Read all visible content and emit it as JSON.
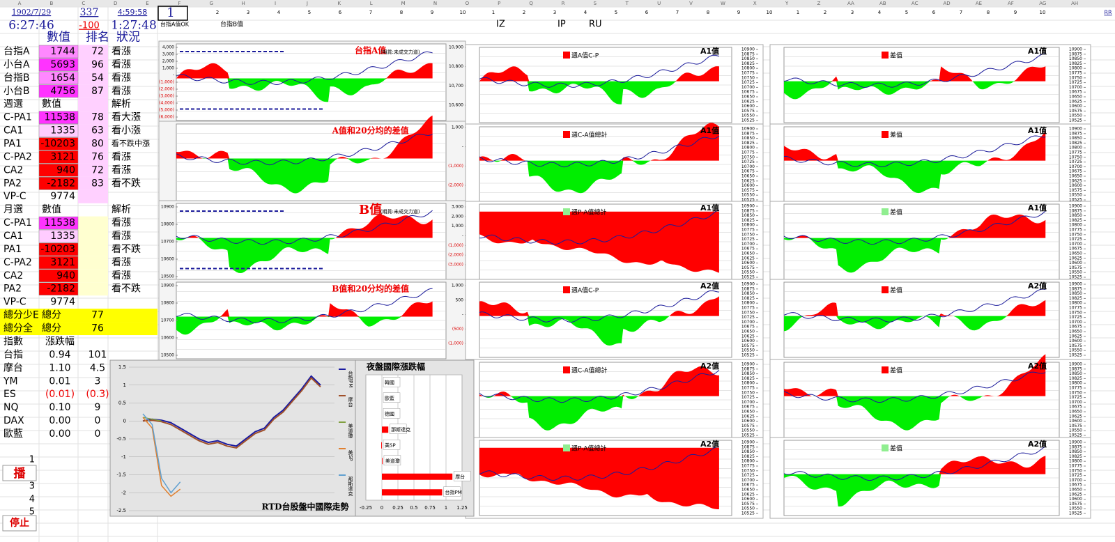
{
  "header": {
    "columns": [
      "A",
      "B",
      "C",
      "D",
      "E",
      "F",
      "G",
      "H",
      "I",
      "J",
      "K",
      "L",
      "M",
      "N",
      "O",
      "P",
      "Q",
      "R",
      "S",
      "T",
      "U",
      "V",
      "W",
      "X",
      "Y",
      "Z",
      "AA",
      "AB",
      "AC",
      "AD",
      "AE",
      "AF",
      "AG",
      "AH"
    ],
    "date": "1902/7/29",
    "count": "337",
    "time1": "4:59:58",
    "cell": "1",
    "clock": "6:27:46",
    "diff": "-100",
    "time2": "1:27:48",
    "corner": "RR",
    "group1": [
      "2",
      "3",
      "4",
      "5",
      "6",
      "7",
      "8",
      "9",
      "10"
    ],
    "group2": [
      "1",
      "2",
      "3",
      "4",
      "5",
      "6",
      "7",
      "8",
      "9",
      "10"
    ],
    "group3": [
      "1",
      "2",
      "3",
      "4",
      "5",
      "6",
      "7",
      "8",
      "9",
      "10"
    ],
    "tabs": [
      "台指A值OK",
      "台指B值"
    ],
    "codes": [
      "IZ",
      "IP",
      "RU"
    ]
  },
  "table": {
    "headers": [
      "數值",
      "排名",
      "狀況"
    ],
    "rows": [
      {
        "label": "台指A",
        "value": "1744",
        "rank": "72",
        "status": "看漲"
      },
      {
        "label": "小台A",
        "value": "5693",
        "rank": "96",
        "status": "看漲"
      },
      {
        "label": "台指B",
        "value": "1654",
        "rank": "54",
        "status": "看漲"
      },
      {
        "label": "小台B",
        "value": "4756",
        "rank": "87",
        "status": "看漲"
      },
      {
        "label": "週選",
        "value": "數值",
        "status": "解析"
      },
      {
        "label": "C-PA1",
        "value": "11538",
        "rank": "78",
        "status": "看大漲"
      },
      {
        "label": "CA1",
        "value": "1335",
        "rank": "63",
        "status": "看小漲"
      },
      {
        "label": "PA1",
        "value": "-10203",
        "rank": "80",
        "status": "看不跌中漲"
      },
      {
        "label": "C-PA2",
        "value": "3121",
        "rank": "76",
        "status": "看漲"
      },
      {
        "label": "CA2",
        "value": "940",
        "rank": "72",
        "status": "看漲"
      },
      {
        "label": "PA2",
        "value": "-2182",
        "rank": "83",
        "status": "看不跌"
      },
      {
        "label": "VP-C",
        "value": "9774"
      },
      {
        "label": "月選",
        "value": "數值",
        "status": "解析"
      },
      {
        "label": "C-PA1",
        "value": "11538",
        "status": "看漲"
      },
      {
        "label": "CA1",
        "value": "1335",
        "status": "看漲"
      },
      {
        "label": "PA1",
        "value": "-10203",
        "status": "看不跌"
      },
      {
        "label": "C-PA2",
        "value": "3121",
        "status": "看漲"
      },
      {
        "label": "CA2",
        "value": "940",
        "status": "看漲"
      },
      {
        "label": "PA2",
        "value": "-2182",
        "status": "看不跌"
      },
      {
        "label": "VP-C",
        "value": "9774"
      },
      {
        "label": "總分少E",
        "value": "總分",
        "rank": "77"
      },
      {
        "label": "總分全",
        "value": "總分",
        "rank": "76"
      },
      {
        "label": "指數",
        "value": "漲跌幅"
      },
      {
        "label": "台指",
        "value": "0.94",
        "rank": "101"
      },
      {
        "label": "摩台",
        "value": "1.10",
        "rank": "4.5"
      },
      {
        "label": "YM",
        "value": "0.01",
        "rank": "3"
      },
      {
        "label": "ES",
        "value": "(0.01)",
        "rank": "(0.3)"
      },
      {
        "label": "NQ",
        "value": "0.10",
        "rank": "9"
      },
      {
        "label": "DAX",
        "value": "0.00",
        "rank": "0"
      },
      {
        "label": "歐藍",
        "value": "0.00",
        "rank": "0"
      }
    ]
  },
  "controls": {
    "numbers": [
      "1",
      "3",
      "4",
      "5"
    ],
    "play": "播",
    "stop": "停止"
  },
  "left_panels": [
    {
      "title": "台指A值",
      "subtitle": "(期貨:未成交力道)",
      "left_ticks": [
        {
          "value": 4000,
          "label": "4,000"
        },
        {
          "value": 3000,
          "label": "3,000"
        },
        {
          "value": 2000,
          "label": "2,000"
        },
        {
          "value": 1000,
          "label": "1,000"
        },
        {
          "value": 0,
          "label": "-"
        },
        {
          "value": -1000,
          "label": "(1,000)"
        },
        {
          "value": -2000,
          "label": "(2,000)"
        },
        {
          "value": -3000,
          "label": "(3,000)"
        },
        {
          "value": -4000,
          "label": "(4,000)"
        },
        {
          "value": -5000,
          "label": "(5,000)"
        },
        {
          "value": -6000,
          "label": "(6,000)"
        }
      ],
      "right_ticks": [
        {
          "value": 10900,
          "label": "10,900"
        },
        {
          "value": 10800,
          "label": "10,800"
        },
        {
          "value": 10700,
          "label": "10,700"
        },
        {
          "value": 10600,
          "label": "10,600"
        }
      ]
    },
    {
      "title": "A值和20分均的差值",
      "left_ticks": [],
      "right_ticks": [
        {
          "value": 1000,
          "label": "1,000"
        },
        {
          "value": 0,
          "label": "-"
        },
        {
          "value": -1000,
          "label": "(1,000)"
        },
        {
          "value": -2000,
          "label": "(2,000)"
        }
      ]
    },
    {
      "title": "B值",
      "subtitle": "(期貨:未成交力道)",
      "left_ticks": [
        10900,
        10800,
        10700,
        10600,
        10500
      ],
      "right_ticks": [
        {
          "value": 3000,
          "label": "3,000"
        },
        {
          "value": 2000,
          "label": "2,000"
        },
        {
          "value": 1000,
          "label": "1,000"
        },
        {
          "value": 0,
          "label": "-"
        },
        {
          "value": -1000,
          "label": "(1,000)"
        },
        {
          "value": -2000,
          "label": "(2,000)"
        },
        {
          "value": -3000,
          "label": "(3,000)"
        }
      ]
    },
    {
      "title": "B值和20分均的差值",
      "left_ticks": [
        10900,
        10800,
        10700,
        10600,
        10500
      ],
      "right_ticks": [
        {
          "value": 1000,
          "label": "1,000"
        },
        500,
        {
          "value": 0,
          "label": "-"
        },
        {
          "value": -500,
          "label": "(500)"
        },
        {
          "value": -1000,
          "label": "(1,000)"
        }
      ]
    }
  ],
  "index_ticks": [
    10900,
    10875,
    10850,
    10825,
    10800,
    10775,
    10750,
    10725,
    10700,
    10675,
    10650,
    10625,
    10600,
    10575,
    10550,
    10525
  ],
  "middle_panels": [
    {
      "legend": "週A值C-P",
      "tag": "A1值",
      "legend_color": "#ff0000"
    },
    {
      "legend": "週C-A值總計",
      "tag": "A1值",
      "legend_color": "#ff0000"
    },
    {
      "legend": "週P-A值總計",
      "tag": "A1值",
      "legend_color": "#90ee90"
    },
    {
      "legend": "週A值C-P",
      "tag": "A2值",
      "legend_color": "#ff0000"
    },
    {
      "legend": "週C-A值總計",
      "tag": "A2值",
      "legend_color": "#ff0000"
    },
    {
      "legend": "週P-A值總計",
      "tag": "A2值",
      "legend_color": "#90ee90"
    }
  ],
  "right_panels": [
    {
      "legend": "差值",
      "tag": "A1值",
      "legend_color": "#ff0000"
    },
    {
      "legend": "差值",
      "tag": "A1值",
      "legend_color": "#ff0000"
    },
    {
      "legend": "差值",
      "tag": "A1值",
      "legend_color": "#90ee90"
    },
    {
      "legend": "差值",
      "tag": "A2值",
      "legend_color": "#ff0000"
    },
    {
      "legend": "差值",
      "tag": "A2值",
      "legend_color": "#ff0000"
    },
    {
      "legend": "差值",
      "tag": "A2值",
      "legend_color": "#90ee90"
    }
  ],
  "chart_data": [
    {
      "type": "line",
      "title": "RTD台股盤中國際走勢",
      "ylim": [
        -2.5,
        1.5
      ],
      "yticks": [
        1.5,
        1,
        0.5,
        0,
        -0.5,
        -1,
        -1.5,
        -2,
        -2.5
      ],
      "grid": true,
      "series": [
        {
          "name": "台指PM",
          "color": "#1a1aa0",
          "values": [
            0,
            0.05,
            0.02,
            -0.05,
            -0.2,
            -0.35,
            -0.5,
            -0.6,
            -0.55,
            -0.65,
            -0.7,
            -0.5,
            -0.3,
            -0.2,
            0.1,
            0.3,
            0.6,
            0.9,
            1.25,
            1.0
          ]
        },
        {
          "name": "摩台",
          "color": "#a0502a",
          "values": [
            0,
            0.02,
            -0.02,
            -0.1,
            -0.25,
            -0.4,
            -0.55,
            -0.65,
            -0.6,
            -0.7,
            -0.75,
            -0.55,
            -0.35,
            -0.25,
            0.05,
            0.25,
            0.55,
            0.85,
            1.2,
            0.95
          ]
        },
        {
          "name": "美道瓊",
          "color": "#80a040",
          "values": [
            0.1,
            0.05,
            0,
            null,
            null,
            null,
            null,
            null,
            null,
            null,
            null,
            null,
            null,
            null,
            null,
            null,
            null,
            null,
            null,
            null
          ]
        },
        {
          "name": "美SP",
          "color": "#e08030",
          "values": [
            0.1,
            -0.2,
            -1.8,
            -2.1,
            -1.9,
            null,
            null,
            null,
            null,
            null,
            null,
            null,
            null,
            null,
            null,
            null,
            null,
            null,
            null,
            null
          ]
        },
        {
          "name": "那斯達克",
          "color": "#60a0d0",
          "values": [
            0.2,
            -0.1,
            -1.6,
            -2,
            -1.7,
            null,
            null,
            null,
            null,
            null,
            null,
            null,
            null,
            null,
            null,
            null,
            null,
            null,
            null,
            null
          ]
        }
      ]
    },
    {
      "type": "bar",
      "title": "夜盤國際漲跌幅",
      "categories": [
        "韓國",
        "歐藍",
        "德國",
        "那斯達克",
        "美SP",
        "美道瓊",
        "摩台",
        "台指PM"
      ],
      "values": [
        0,
        0,
        0,
        0.1,
        -0.01,
        0.01,
        1.1,
        0.94
      ],
      "color": "#ff0000",
      "xlim": [
        -0.25,
        1.25
      ],
      "xticks": [
        -0.25,
        0,
        0.25,
        0.5,
        0.75,
        1,
        1.25
      ],
      "grid": true
    }
  ]
}
